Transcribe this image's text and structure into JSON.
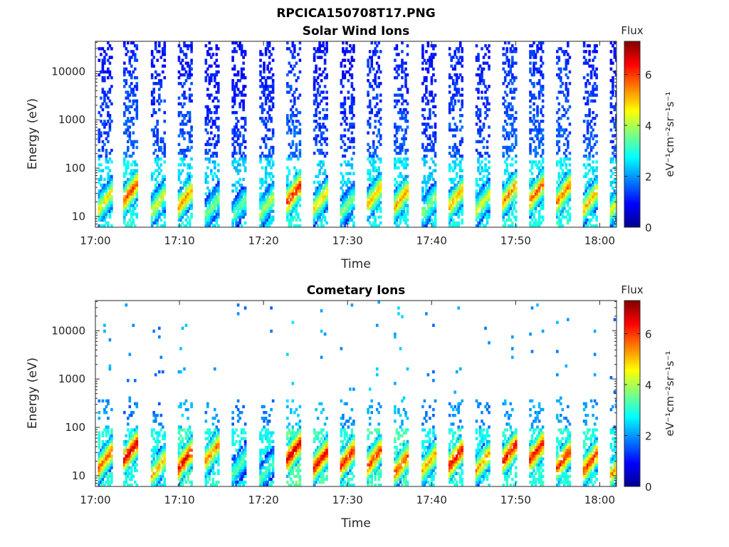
{
  "figure": {
    "title": "RPCICA150708T17.PNG"
  },
  "colorbar": {
    "title": "Flux",
    "unit_label": "eV⁻¹cm⁻²sr⁻¹s⁻¹",
    "range": [
      0,
      7.3
    ],
    "ticks": [
      0,
      2,
      4,
      6
    ],
    "colormap": "jet",
    "colors": [
      "#00008f",
      "#0000ff",
      "#0080ff",
      "#00ffff",
      "#80ff80",
      "#ffff00",
      "#ff8000",
      "#ff0000",
      "#800000"
    ]
  },
  "chart_data": [
    {
      "type": "heatmap",
      "title": "Solar Wind Ions",
      "xlabel": "Time",
      "ylabel": "Energy (eV)",
      "x_range": [
        "17:00",
        "18:02"
      ],
      "x_ticks": [
        "17:00",
        "17:10",
        "17:20",
        "17:30",
        "17:40",
        "17:50",
        "18:00"
      ],
      "y_scale": "log",
      "y_range": [
        6,
        42000
      ],
      "y_ticks": [
        10,
        100,
        1000,
        10000
      ],
      "y_tick_labels": [
        "10",
        "100",
        "1000",
        "10000"
      ],
      "sweep_start_minutes": [
        0.3,
        3.3,
        6.6,
        9.8,
        13.0,
        16.2,
        19.5,
        22.7,
        25.9,
        29.1,
        32.3,
        35.5,
        38.8,
        42.0,
        45.2,
        48.4,
        51.6,
        54.8,
        58.0,
        61.2
      ],
      "peak_energy_eV": [
        20,
        30,
        18,
        22,
        15,
        14,
        16,
        28,
        20,
        16,
        25,
        22,
        16,
        22,
        18,
        28,
        30,
        28,
        20,
        18
      ],
      "peak_flux": [
        4.8,
        6.0,
        4.5,
        5.5,
        3.8,
        3.6,
        4.2,
        6.4,
        5.0,
        3.8,
        5.2,
        5.4,
        4.0,
        5.4,
        4.5,
        5.6,
        5.8,
        5.6,
        5.2,
        4.6
      ],
      "background_flux": [
        1.6,
        1.8,
        1.6,
        1.7,
        1.5,
        1.5,
        1.6,
        1.8,
        1.6,
        1.5,
        1.7,
        1.7,
        1.5,
        1.7,
        1.6,
        1.8,
        1.8,
        1.8,
        1.7,
        1.6
      ]
    },
    {
      "type": "heatmap",
      "title": "Cometary Ions",
      "xlabel": "Time",
      "ylabel": "Energy (eV)",
      "x_range": [
        "17:00",
        "18:02"
      ],
      "x_ticks": [
        "17:00",
        "17:10",
        "17:20",
        "17:30",
        "17:40",
        "17:50",
        "18:00"
      ],
      "y_scale": "log",
      "y_range": [
        6,
        42000
      ],
      "y_ticks": [
        10,
        100,
        1000,
        10000
      ],
      "y_tick_labels": [
        "10",
        "100",
        "1000",
        "10000"
      ],
      "sweep_start_minutes": [
        0.3,
        3.3,
        6.6,
        9.8,
        13.0,
        16.2,
        19.5,
        22.7,
        25.9,
        29.1,
        32.3,
        35.5,
        38.8,
        42.0,
        45.2,
        48.4,
        51.6,
        54.8,
        58.0,
        61.2
      ],
      "peak_energy_eV": [
        20,
        30,
        14,
        20,
        28,
        15,
        12,
        30,
        20,
        22,
        22,
        16,
        18,
        22,
        18,
        28,
        30,
        20,
        18,
        14
      ],
      "peak_flux": [
        5.8,
        6.8,
        5.2,
        6.6,
        5.6,
        3.6,
        3.5,
        6.9,
        6.6,
        6.4,
        6.2,
        6.0,
        5.2,
        6.6,
        5.4,
        6.6,
        6.6,
        6.4,
        6.2,
        5.4
      ],
      "background_flux": [
        2.2,
        2.0,
        2.0,
        2.4,
        2.2,
        2.0,
        2.0,
        2.6,
        2.4,
        2.2,
        2.4,
        2.4,
        2.0,
        2.2,
        2.0,
        2.2,
        2.2,
        2.2,
        2.2,
        2.0
      ]
    }
  ]
}
